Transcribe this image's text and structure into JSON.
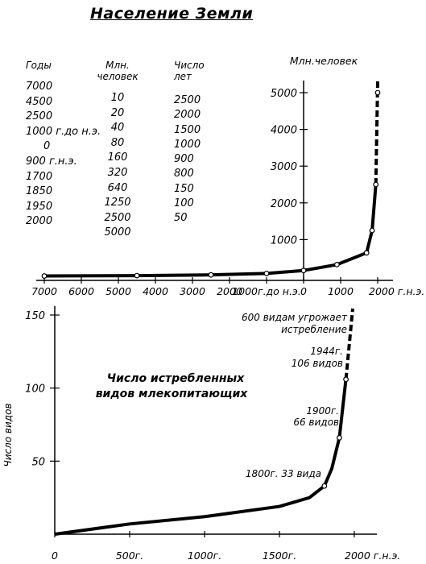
{
  "title": "Население Земли",
  "table": {
    "headers": {
      "years": "Годы",
      "population": "Млн. человек",
      "years_count": "Число лет"
    },
    "years": [
      "7000",
      "4500",
      "2500",
      "1000 г.до н.э.",
      "0",
      "900 г.н.э.",
      "1700",
      "1850",
      "1950",
      "2000"
    ],
    "population": [
      "10",
      "20",
      "40",
      "80",
      "160",
      "320",
      "640",
      "1250",
      "2500",
      "5000"
    ],
    "years_count": [
      "2500",
      "2000",
      "1500",
      "1000",
      "900",
      "800",
      "150",
      "100",
      "50"
    ]
  },
  "chart_data": [
    {
      "type": "line",
      "title": "",
      "ylabel": "Млн.человек",
      "xlabel": "",
      "x_ticks": [
        "7000",
        "6000",
        "5000",
        "4000",
        "3000",
        "2000",
        "1000г.до н.э.",
        "0",
        "1000",
        "2000 г.н.э."
      ],
      "x_tick_values": [
        -7000,
        -6000,
        -5000,
        -4000,
        -3000,
        -2000,
        -1000,
        0,
        1000,
        2000
      ],
      "y_ticks": [
        "1000",
        "2000",
        "3000",
        "4000",
        "5000"
      ],
      "y_tick_values": [
        1000,
        2000,
        3000,
        4000,
        5000
      ],
      "xlim": [
        -7000,
        2000
      ],
      "ylim": [
        0,
        5000
      ],
      "series": [
        {
          "x": [
            -7000,
            -4500,
            -2500,
            -1000,
            0,
            900,
            1700,
            1850,
            1950,
            2000
          ],
          "y": [
            10,
            20,
            40,
            80,
            160,
            320,
            640,
            1250,
            2500,
            5000
          ],
          "projected_from": 1950
        }
      ]
    },
    {
      "type": "line",
      "title": "Число истребленных видов млекопитающих",
      "ylabel": "Число видов",
      "xlabel": "",
      "x_ticks": [
        "0",
        "500г.",
        "1000г.",
        "1500г.",
        "2000 г.н.э."
      ],
      "x_tick_values": [
        0,
        500,
        1000,
        1500,
        2000
      ],
      "y_ticks": [
        "50",
        "100",
        "150"
      ],
      "y_tick_values": [
        50,
        100,
        150
      ],
      "xlim": [
        0,
        2000
      ],
      "ylim": [
        0,
        150
      ],
      "series": [
        {
          "x": [
            0,
            500,
            1000,
            1500,
            1700,
            1800,
            1850,
            1900,
            1944
          ],
          "y": [
            0,
            7,
            12,
            19,
            25,
            33,
            45,
            66,
            106
          ],
          "marked_x": [
            1800,
            1900,
            1944
          ],
          "projected_to": {
            "x": 2000,
            "y": 150
          }
        }
      ],
      "annotations": [
        {
          "text": "1800г. 33 вида",
          "x": 1800,
          "y": 33
        },
        {
          "text": "1900г.",
          "x": 1900,
          "y": 66
        },
        {
          "text": "66 видов",
          "x": 1900,
          "y": 66
        },
        {
          "text": "1944г.",
          "x": 1944,
          "y": 106
        },
        {
          "text": "106 видов",
          "x": 1944,
          "y": 106
        },
        {
          "text": "600 видам угрожает",
          "x": 2000,
          "y": 150
        },
        {
          "text": "истребление",
          "x": 2000,
          "y": 150
        }
      ]
    }
  ]
}
